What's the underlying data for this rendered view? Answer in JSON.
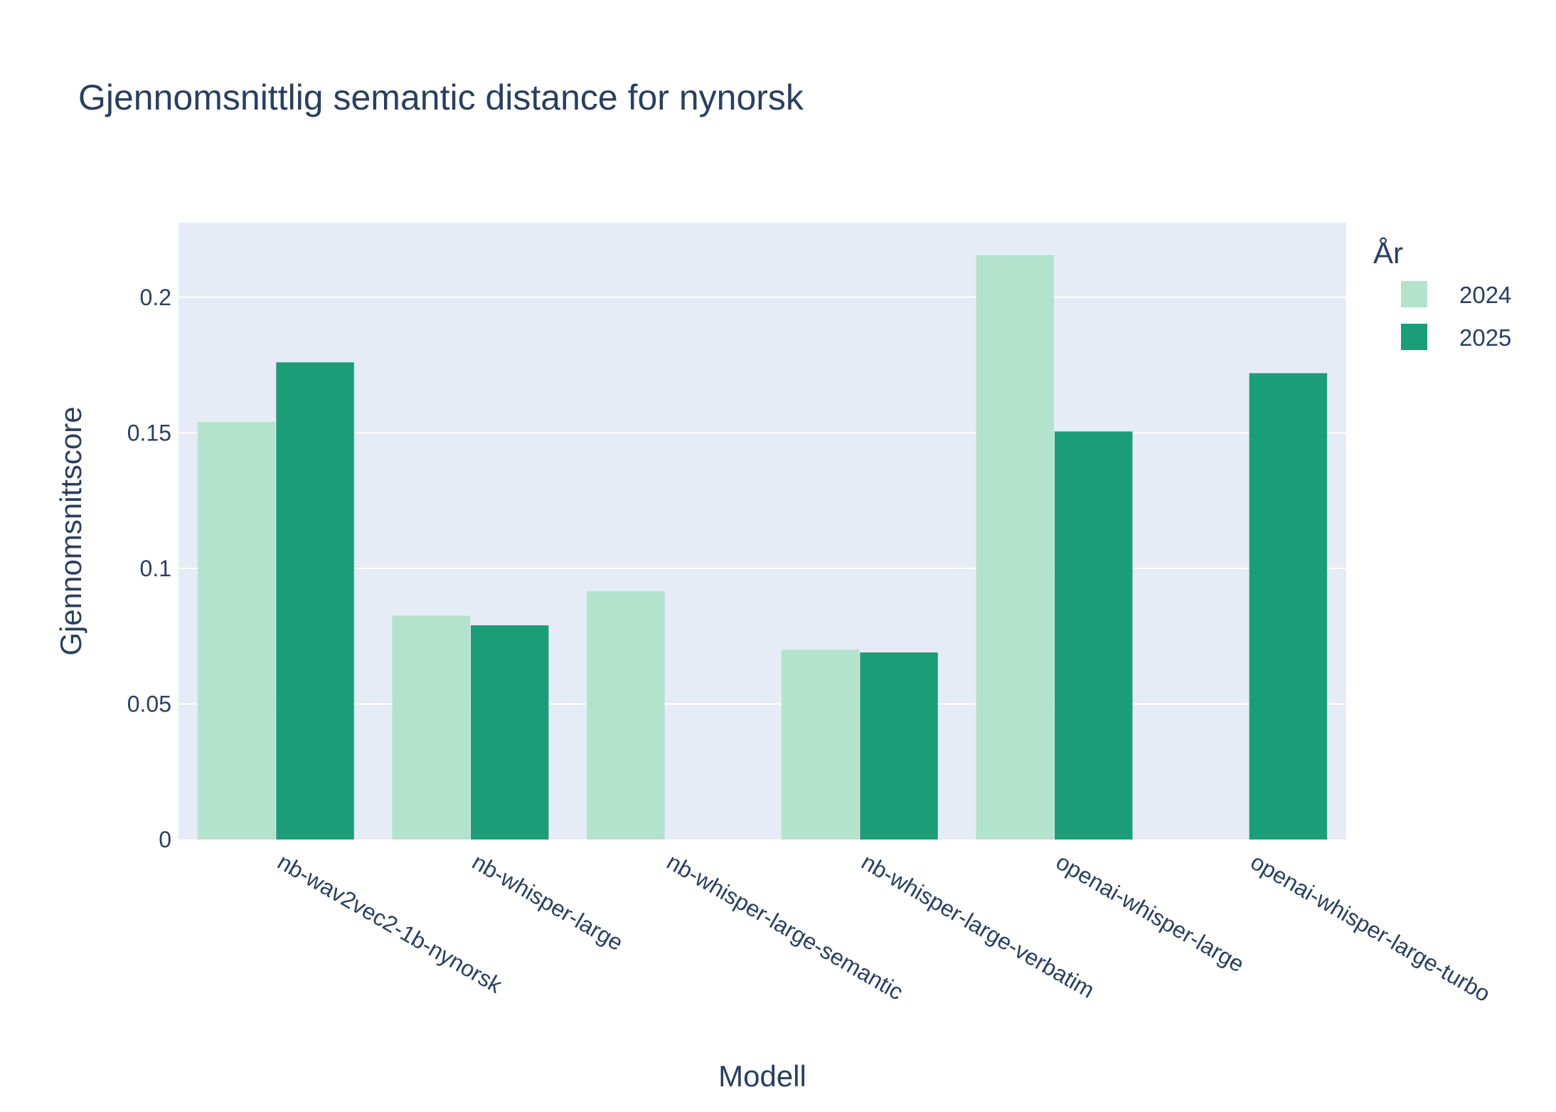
{
  "chart_data": {
    "type": "bar",
    "title": "Gjennomsnittlig semantic distance for nynorsk",
    "xlabel": "Modell",
    "ylabel": "Gjennomsnittscore",
    "categories": [
      "nb-wav2vec2-1b-nynorsk",
      "nb-whisper-large",
      "nb-whisper-large-semantic",
      "nb-whisper-large-verbatim",
      "openai-whisper-large",
      "openai-whisper-large-turbo"
    ],
    "legend_title": "År",
    "series": [
      {
        "name": "2024",
        "color": "#b3e2cd",
        "values": [
          0.154,
          0.0825,
          0.0915,
          0.07,
          0.2155,
          null
        ]
      },
      {
        "name": "2025",
        "color": "#1b9e77",
        "values": [
          0.176,
          0.079,
          null,
          0.069,
          0.1505,
          0.172
        ]
      }
    ],
    "yticks": [
      0,
      0.05,
      0.1,
      0.15,
      0.2
    ],
    "ytick_labels": [
      "0",
      "0.05",
      "0.1",
      "0.15",
      "0.2"
    ],
    "ylim": [
      0,
      0.2275
    ],
    "grid": true,
    "legend_position": "top-right",
    "plot_background": "#e5ecf6",
    "grid_color": "#ffffff"
  }
}
